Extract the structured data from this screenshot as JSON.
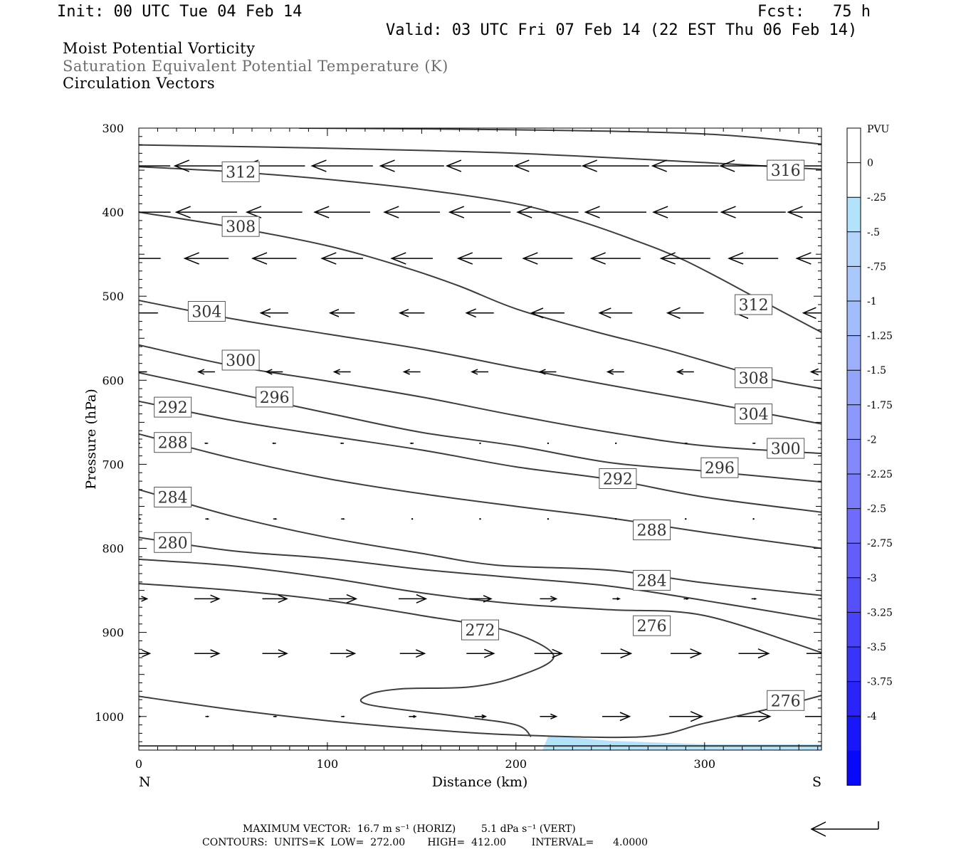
{
  "header": {
    "init": "Init: 00 UTC Tue 04 Feb 14",
    "fcst": "Fcst:   75 h",
    "valid": "Valid: 03 UTC Fri 07 Feb 14 (22 EST Thu 06 Feb 14)"
  },
  "titles": {
    "line1": "Moist Potential Vorticity",
    "line2": "Saturation Equivalent Potential Temperature (K)",
    "line3": "Circulation Vectors",
    "line2_color": "#6e6e6e"
  },
  "footer": {
    "max_vector": "MAXIMUM VECTOR:  16.7 m s⁻¹ (HORIZ)        5.1 dPa s⁻¹ (VERT)",
    "contours": "CONTOURS:  UNITS=K  LOW=  272.00       HIGH=  412.00        INTERVAL=      4.0000"
  },
  "chart_data": {
    "type": "cross-section",
    "xlabel": "Distance (km)",
    "ylabel": "Pressure (hPa)",
    "xlim": [
      0,
      362
    ],
    "ylim": [
      1040,
      300
    ],
    "xticks": [
      0,
      100,
      200,
      300
    ],
    "yticks": [
      300,
      400,
      500,
      600,
      700,
      800,
      900,
      1000
    ],
    "x_end_labels": {
      "left": "N",
      "right": "S"
    },
    "colorbar": {
      "unit": "PVU",
      "levels": [
        "0",
        "-.25",
        "-.5",
        "-.75",
        "-1",
        "-1.25",
        "-1.5",
        "-1.75",
        "-2",
        "-2.25",
        "-2.5",
        "-2.75",
        "-3",
        "-3.25",
        "-3.5",
        "-3.75",
        "-4"
      ],
      "colors": [
        "#ffffff",
        "#ffffff",
        "#b3e3fb",
        "#b5d4fb",
        "#aac8fb",
        "#a3bcfb",
        "#9cb0fb",
        "#94a4fb",
        "#8c98fb",
        "#8389fb",
        "#7a7cfb",
        "#6f6cfb",
        "#635efb",
        "#5650fb",
        "#4843fb",
        "#3a34fb",
        "#2a24fb",
        "#1a16fb",
        "#0a08fb"
      ]
    },
    "pv_shading": {
      "level": "-.25",
      "color": "#b3e3fb",
      "region": [
        [
          214,
          1040
        ],
        [
          217,
          1024
        ],
        [
          225,
          1024
        ],
        [
          250,
          1029
        ],
        [
          300,
          1033
        ],
        [
          362,
          1033
        ],
        [
          362,
          1040
        ]
      ]
    },
    "contours": [
      {
        "value": 316,
        "points": [
          [
            85,
            300
          ],
          [
            200,
            302
          ],
          [
            300,
            307
          ],
          [
            362,
            319
          ]
        ]
      },
      {
        "value": 316,
        "label_at": [
          343,
          350
        ],
        "points": [
          [
            0,
            320
          ],
          [
            100,
            324
          ],
          [
            200,
            330
          ],
          [
            300,
            341
          ],
          [
            362,
            349
          ]
        ]
      },
      {
        "value": 312,
        "label_at": [
          54,
          352
        ],
        "points": [
          [
            0,
            346
          ],
          [
            50,
            352
          ],
          [
            100,
            361
          ],
          [
            150,
            373
          ],
          [
            200,
            390
          ],
          [
            230,
            408
          ],
          [
            260,
            431
          ],
          [
            290,
            458
          ],
          [
            330,
            505
          ],
          [
            362,
            543
          ]
        ]
      },
      {
        "value": 308,
        "label_at": [
          54,
          417
        ],
        "points": [
          [
            0,
            400
          ],
          [
            50,
            418
          ],
          [
            100,
            440
          ],
          [
            140,
            465
          ],
          [
            170,
            488
          ],
          [
            200,
            515
          ],
          [
            240,
            541
          ],
          [
            280,
            564
          ],
          [
            330,
            596
          ],
          [
            362,
            610
          ]
        ]
      },
      {
        "value": 304,
        "label_at": [
          36,
          518
        ],
        "points": [
          [
            0,
            505
          ],
          [
            50,
            527
          ],
          [
            100,
            545
          ],
          [
            150,
            563
          ],
          [
            200,
            585
          ],
          [
            250,
            606
          ],
          [
            300,
            626
          ],
          [
            362,
            652
          ]
        ]
      },
      {
        "value": 300,
        "label_at": [
          54,
          576
        ],
        "points": [
          [
            0,
            558
          ],
          [
            50,
            583
          ],
          [
            100,
            601
          ],
          [
            150,
            620
          ],
          [
            200,
            642
          ],
          [
            250,
            662
          ],
          [
            300,
            678
          ],
          [
            362,
            687
          ]
        ]
      },
      {
        "value": 296,
        "label_at": [
          72,
          620
        ],
        "points": [
          [
            0,
            591
          ],
          [
            50,
            615
          ],
          [
            100,
            639
          ],
          [
            150,
            662
          ],
          [
            200,
            678
          ],
          [
            250,
            698
          ],
          [
            300,
            708
          ],
          [
            362,
            721
          ]
        ]
      },
      {
        "value": 292,
        "label_at": [
          18,
          632
        ],
        "points": [
          [
            0,
            625
          ],
          [
            50,
            648
          ],
          [
            100,
            666
          ],
          [
            150,
            683
          ],
          [
            200,
            703
          ],
          [
            250,
            718
          ],
          [
            300,
            739
          ],
          [
            362,
            757
          ]
        ]
      },
      {
        "value": 288,
        "label_at": [
          18,
          674
        ],
        "points": [
          [
            0,
            664
          ],
          [
            50,
            693
          ],
          [
            100,
            717
          ],
          [
            150,
            735
          ],
          [
            200,
            750
          ],
          [
            250,
            764
          ],
          [
            300,
            781
          ],
          [
            362,
            800
          ]
        ]
      },
      {
        "value": 284,
        "label_at": [
          18,
          739
        ],
        "points": [
          [
            0,
            730
          ],
          [
            50,
            762
          ],
          [
            100,
            787
          ],
          [
            150,
            806
          ],
          [
            190,
            820
          ],
          [
            250,
            826
          ],
          [
            300,
            841
          ],
          [
            362,
            856
          ]
        ]
      },
      {
        "value": 280,
        "label_at": [
          18,
          793
        ],
        "points": [
          [
            0,
            787
          ],
          [
            50,
            803
          ],
          [
            100,
            812
          ],
          [
            150,
            825
          ],
          [
            200,
            835
          ],
          [
            250,
            845
          ],
          [
            300,
            862
          ],
          [
            362,
            885
          ]
        ]
      },
      {
        "value": 276,
        "label_at": [
          343,
          981
        ],
        "points": [
          [
            0,
            813
          ],
          [
            50,
            821
          ],
          [
            100,
            835
          ],
          [
            150,
            853
          ],
          [
            200,
            866
          ],
          [
            250,
            873
          ],
          [
            300,
            880
          ],
          [
            362,
            924
          ]
        ]
      },
      {
        "value": 272,
        "label_at": [
          181,
          897
        ],
        "points": [
          [
            0,
            842
          ],
          [
            50,
            850
          ],
          [
            100,
            862
          ],
          [
            150,
            880
          ],
          [
            195,
            898
          ],
          [
            220,
            928
          ],
          [
            200,
            953
          ],
          [
            175,
            965
          ],
          [
            140,
            967
          ],
          [
            122,
            974
          ],
          [
            122,
            986
          ],
          [
            170,
            1000
          ],
          [
            200,
            1010
          ],
          [
            208,
            1024
          ]
        ]
      },
      {
        "value": 276,
        "points": [
          [
            0,
            976
          ],
          [
            50,
            992
          ],
          [
            100,
            1005
          ],
          [
            150,
            1015
          ],
          [
            200,
            1022
          ],
          [
            268,
            1024
          ],
          [
            300,
            1008
          ],
          [
            340,
            988
          ],
          [
            362,
            975
          ]
        ]
      },
      {
        "value": 280,
        "points": [
          [
            0,
            1035
          ],
          [
            362,
            1035
          ]
        ]
      }
    ],
    "contour_label_values": [
      316,
      312,
      308,
      304,
      300,
      296,
      292,
      288,
      284,
      280,
      276,
      272,
      276,
      312,
      308,
      304,
      300,
      296,
      292,
      288,
      284,
      276
    ],
    "extra_contour_labels": [
      {
        "value": 312,
        "label_at": [
          326,
          510
        ]
      },
      {
        "value": 308,
        "label_at": [
          326,
          597
        ]
      },
      {
        "value": 304,
        "label_at": [
          326,
          640
        ]
      },
      {
        "value": 300,
        "label_at": [
          343,
          681
        ]
      },
      {
        "value": 296,
        "label_at": [
          308,
          704
        ]
      },
      {
        "value": 292,
        "label_at": [
          254,
          717
        ]
      },
      {
        "value": 288,
        "label_at": [
          272,
          778
        ]
      },
      {
        "value": 284,
        "label_at": [
          272,
          838
        ]
      },
      {
        "value": 276,
        "label_at": [
          272,
          892
        ]
      }
    ],
    "vector_grid": {
      "x": [
        0,
        36,
        72,
        108,
        145,
        181,
        217,
        253,
        290,
        326,
        362
      ],
      "rows": [
        {
          "p": 345,
          "u": [
            -9.2,
            -9.3,
            -8.9,
            -8.9,
            -9.3,
            -9.7,
            -9.7,
            -9.7,
            -9.7,
            -9.7,
            -9.7
          ]
        },
        {
          "p": 400,
          "u": [
            -9.3,
            -8.9,
            -8.1,
            -8.1,
            -8.1,
            -8.9,
            -8.9,
            -8.9,
            -9.4,
            -9.4,
            -9.7
          ]
        },
        {
          "p": 455,
          "u": [
            -6.4,
            -6.4,
            -6.4,
            -6.0,
            -6.0,
            -6.4,
            -7.2,
            -7.2,
            -7.2,
            -7.2,
            -7.2
          ]
        },
        {
          "p": 520,
          "u": [
            -5.6,
            -4.0,
            -4.0,
            -3.6,
            -3.6,
            -4.0,
            -4.8,
            -4.8,
            -5.3,
            -5.3,
            -5.3
          ]
        },
        {
          "p": 590,
          "u": [
            -2.4,
            -2.4,
            -2.4,
            -2.4,
            -2.4,
            -2.4,
            -2.4,
            -2.4,
            -2.4,
            -2.4,
            -3.0
          ]
        },
        {
          "p": 675,
          "u": [
            -0.4,
            -0.4,
            -0.4,
            -0.4,
            -0.4,
            -0.2,
            0.0,
            0.0,
            0.3,
            0.3,
            0.3
          ]
        },
        {
          "p": 765,
          "u": [
            0.4,
            0.4,
            0.4,
            0.4,
            0.0,
            0.0,
            0.0,
            0.0,
            0.0,
            0.0,
            0.0
          ]
        },
        {
          "p": 860,
          "u": [
            2.4,
            3.6,
            3.6,
            4.0,
            4.0,
            3.2,
            2.4,
            1.0,
            0.6,
            0.6,
            0.6
          ]
        },
        {
          "p": 925,
          "u": [
            3.2,
            3.6,
            3.6,
            3.6,
            3.6,
            4.0,
            4.0,
            4.4,
            4.4,
            4.4,
            4.4
          ]
        },
        {
          "p": 1000,
          "u": [
            0.4,
            0.4,
            0.4,
            0.4,
            1.0,
            1.6,
            2.4,
            4.0,
            4.8,
            4.8,
            4.8
          ]
        }
      ]
    }
  }
}
